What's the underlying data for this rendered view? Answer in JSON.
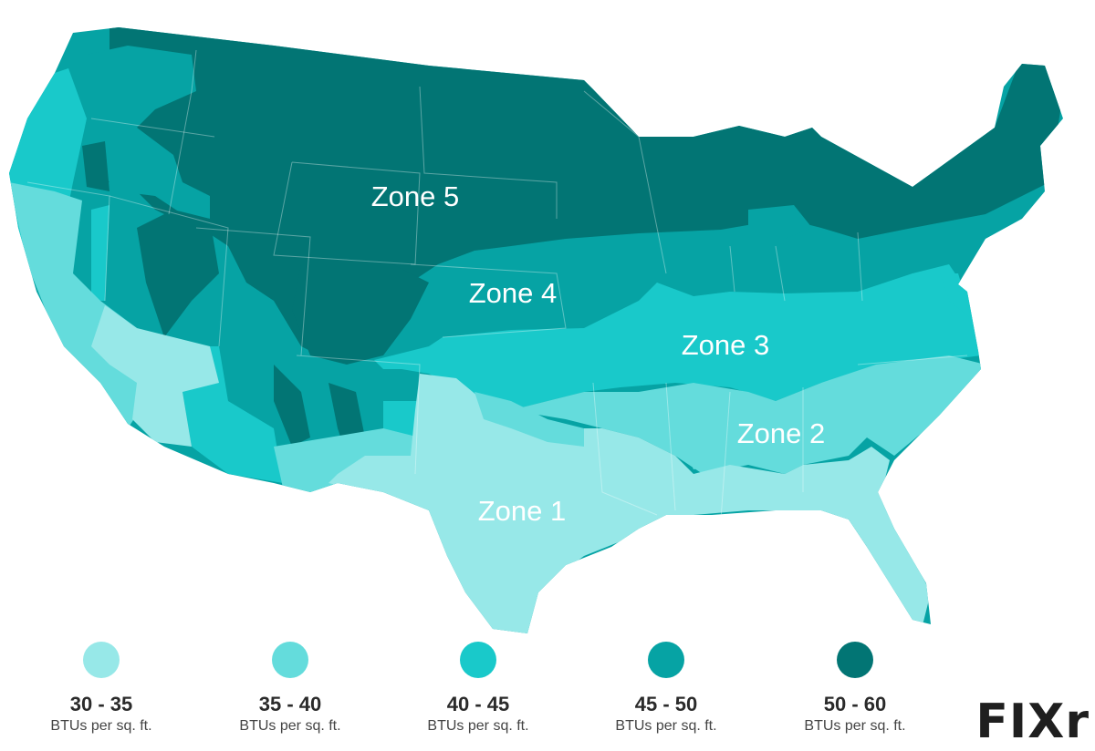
{
  "map": {
    "zones": [
      {
        "id": "zone-1",
        "label": "Zone 1",
        "color": "#97e8e8"
      },
      {
        "id": "zone-2",
        "label": "Zone 2",
        "color": "#64dcdc"
      },
      {
        "id": "zone-3",
        "label": "Zone 3",
        "color": "#19c9ca"
      },
      {
        "id": "zone-4",
        "label": "Zone 4",
        "color": "#06a3a4"
      },
      {
        "id": "zone-5",
        "label": "Zone 5",
        "color": "#027574"
      }
    ]
  },
  "legend": {
    "items": [
      {
        "range": "30 - 35",
        "unit": "BTUs per sq. ft.",
        "color": "#97e8e8"
      },
      {
        "range": "35 - 40",
        "unit": "BTUs per sq. ft.",
        "color": "#64dcdc"
      },
      {
        "range": "40 - 45",
        "unit": "BTUs per sq. ft.",
        "color": "#19c9ca"
      },
      {
        "range": "45 - 50",
        "unit": "BTUs per sq. ft.",
        "color": "#06a3a4"
      },
      {
        "range": "50 - 60",
        "unit": "BTUs per sq. ft.",
        "color": "#027574"
      }
    ]
  },
  "logo": {
    "text": "FIXr"
  }
}
